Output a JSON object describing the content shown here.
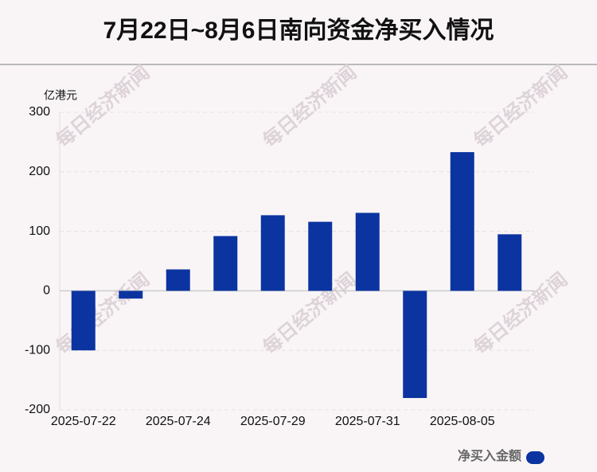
{
  "chart_data": {
    "type": "bar",
    "title": "7月22日~8月6日南向资金净买入情况",
    "y_label": "亿港元",
    "watermark": "每日经济新闻",
    "categories": [
      "2025-07-22",
      null,
      "2025-07-24",
      null,
      "2025-07-29",
      null,
      "2025-07-31",
      null,
      "2025-08-05",
      null
    ],
    "series": [
      {
        "name": "净买入金额",
        "color": "#0b34a0",
        "values": [
          -100,
          -13,
          36,
          92,
          127,
          116,
          131,
          -180,
          233,
          95
        ]
      }
    ],
    "ylim": [
      -200,
      300
    ],
    "yticks": [
      -200,
      -100,
      0,
      100,
      200,
      300
    ],
    "grid": true,
    "legend": "bottom-right"
  }
}
